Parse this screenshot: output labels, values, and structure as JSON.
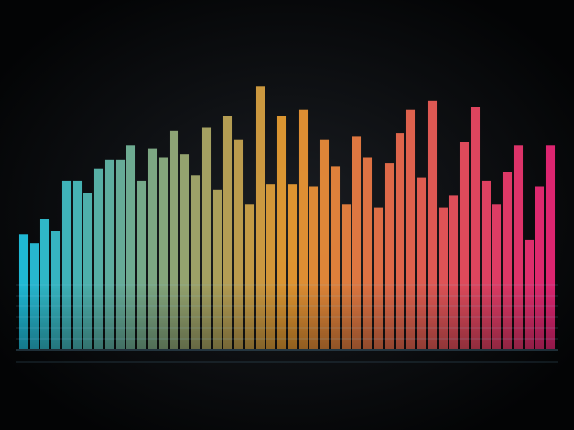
{
  "chart_data": {
    "type": "bar",
    "values": [
      39,
      36,
      44,
      40,
      57,
      57,
      53,
      61,
      64,
      64,
      69,
      57,
      68,
      65,
      74,
      66,
      59,
      75,
      54,
      79,
      71,
      49,
      89,
      56,
      79,
      56,
      81,
      55,
      71,
      62,
      49,
      72,
      65,
      48,
      63,
      73,
      81,
      58,
      84,
      48,
      52,
      70,
      82,
      57,
      49,
      60,
      69,
      37,
      55,
      69
    ],
    "gradient": [
      "#22c8e6",
      "#f0a030",
      "#f0287a"
    ],
    "ylim": [
      0,
      100
    ]
  }
}
